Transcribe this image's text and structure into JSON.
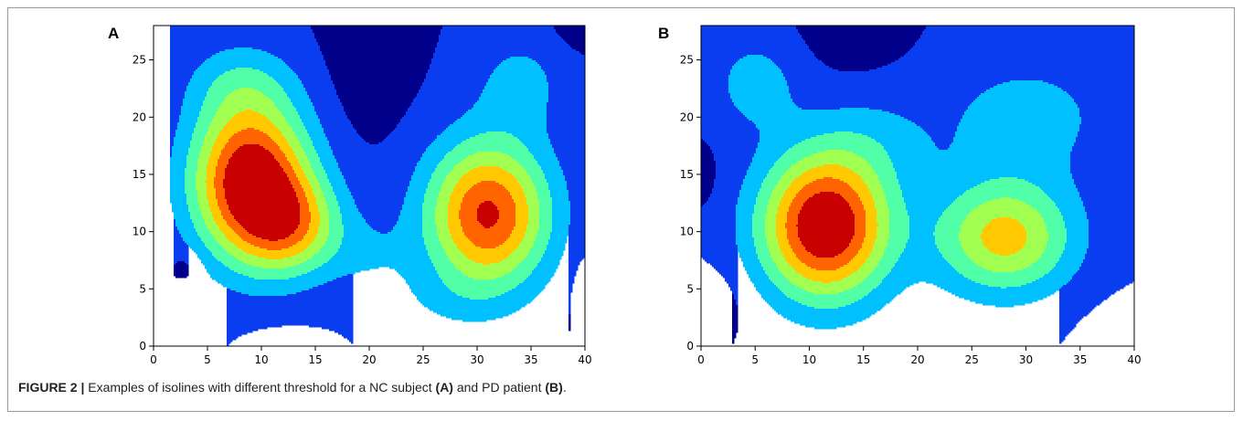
{
  "caption": {
    "label": "FIGURE 2 |",
    "text_before": " Examples of isolines with different threshold for a NC subject ",
    "ref_a": "(A)",
    "text_middle": " and PD patient ",
    "ref_b": "(B)",
    "text_end": "."
  },
  "colors": {
    "levels": [
      "#00008b",
      "#0a3cf0",
      "#00c0ff",
      "#50ffa8",
      "#a0ff50",
      "#ffc800",
      "#ff6400",
      "#c80000"
    ]
  },
  "chart_data": [
    {
      "type": "contour",
      "panel_label": "A",
      "colormap": "jet",
      "xlim": [
        0,
        40
      ],
      "ylim": [
        0,
        28
      ],
      "xticks": [
        0,
        5,
        10,
        15,
        20,
        25,
        30,
        35,
        40
      ],
      "yticks": [
        0,
        5,
        10,
        15,
        20,
        25
      ],
      "levels": [
        0,
        1,
        2,
        3,
        4,
        5,
        6,
        7
      ],
      "blobs": [
        {
          "x": 9,
          "y": 14.5,
          "sx": 3.8,
          "sy": 4.8,
          "amp": 7.2
        },
        {
          "x": 13,
          "y": 10.5,
          "sx": 3.2,
          "sy": 3.0,
          "amp": 3.4
        },
        {
          "x": 31,
          "y": 11.5,
          "sx": 4.0,
          "sy": 4.5,
          "amp": 6.2
        },
        {
          "x": 8,
          "y": 23,
          "sx": 3.5,
          "sy": 2.5,
          "amp": 1.3
        },
        {
          "x": 34,
          "y": 23,
          "sx": 3.0,
          "sy": 3.0,
          "amp": 1.3
        },
        {
          "x": 20,
          "y": 8,
          "sx": 3.0,
          "sy": 2.5,
          "amp": 0.8
        },
        {
          "x": 27,
          "y": 4,
          "sx": 4.0,
          "sy": 2.0,
          "amp": 0.6
        },
        {
          "x": 20,
          "y": 27,
          "sx": 2.5,
          "sy": 5.0,
          "amp": -0.9
        },
        {
          "x": 3,
          "y": 7,
          "sx": 1.0,
          "sy": 1.0,
          "amp": -0.7
        },
        {
          "x": 12,
          "y": 0,
          "sx": 2.5,
          "sy": 1.2,
          "amp": -0.6
        },
        {
          "x": 40,
          "y": 5,
          "sx": 1.0,
          "sy": 2.5,
          "amp": -0.7
        },
        {
          "x": 40,
          "y": 28,
          "sx": 2.0,
          "sy": 1.5,
          "amp": -0.6
        }
      ]
    },
    {
      "type": "contour",
      "panel_label": "B",
      "colormap": "jet",
      "xlim": [
        0,
        40
      ],
      "ylim": [
        0,
        28
      ],
      "xticks": [
        0,
        5,
        10,
        15,
        20,
        25,
        30,
        35,
        40
      ],
      "yticks": [
        0,
        5,
        10,
        15,
        20,
        25
      ],
      "levels": [
        0,
        1,
        2,
        3,
        4,
        5,
        6,
        7
      ],
      "blobs": [
        {
          "x": 11.5,
          "y": 10.5,
          "sx": 4.2,
          "sy": 4.5,
          "amp": 7.3
        },
        {
          "x": 28,
          "y": 9.5,
          "sx": 4.5,
          "sy": 3.5,
          "amp": 4.4
        },
        {
          "x": 5,
          "y": 23,
          "sx": 3.0,
          "sy": 3.0,
          "amp": 1.4
        },
        {
          "x": 30,
          "y": 20,
          "sx": 6.0,
          "sy": 4.0,
          "amp": 1.4
        },
        {
          "x": 16,
          "y": 18,
          "sx": 4.0,
          "sy": 3.0,
          "amp": 0.9
        },
        {
          "x": 14,
          "y": 28,
          "sx": 3.0,
          "sy": 2.5,
          "amp": -0.8
        },
        {
          "x": 0,
          "y": 15,
          "sx": 1.0,
          "sy": 1.8,
          "amp": -0.6
        },
        {
          "x": 0,
          "y": 4,
          "sx": 2.5,
          "sy": 2.0,
          "amp": -0.8
        },
        {
          "x": 40,
          "y": 0,
          "sx": 3.0,
          "sy": 2.5,
          "amp": -0.9
        }
      ]
    }
  ]
}
